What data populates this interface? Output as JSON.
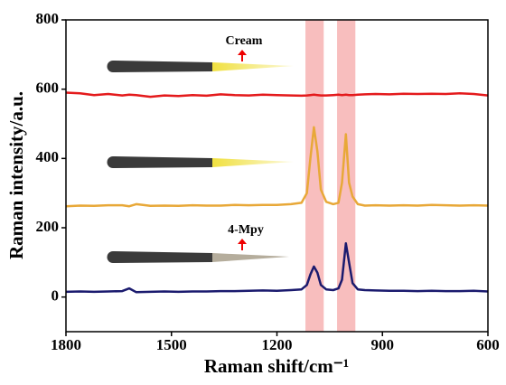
{
  "chart_data": {
    "type": "line",
    "xlabel": "Raman shift/cm⁻¹",
    "ylabel": "Raman intensity/a.u.",
    "annotations": [
      "Cream",
      "4-Mpy"
    ],
    "xlim": [
      1800,
      600
    ],
    "xticks": [
      1800,
      1500,
      1200,
      900,
      600
    ],
    "ylim": [
      -100,
      800
    ],
    "yticks": [
      0,
      200,
      400,
      600,
      800
    ],
    "highlight_color": "#f7b3b3",
    "highlight_ranges": [
      [
        1119,
        1067
      ],
      [
        1029,
        977
      ]
    ],
    "x": [
      1800,
      1760,
      1720,
      1680,
      1640,
      1620,
      1600,
      1560,
      1520,
      1480,
      1440,
      1400,
      1360,
      1320,
      1280,
      1240,
      1200,
      1160,
      1130,
      1115,
      1105,
      1095,
      1085,
      1075,
      1060,
      1040,
      1025,
      1015,
      1004,
      995,
      985,
      970,
      950,
      920,
      880,
      840,
      800,
      760,
      720,
      680,
      640,
      600
    ],
    "series": [
      {
        "color": "#e41a1c",
        "values": [
          590,
          588,
          583,
          586,
          582,
          584,
          583,
          578,
          582,
          580,
          583,
          581,
          585,
          583,
          582,
          584,
          583,
          582,
          581,
          582,
          583,
          584,
          583,
          582,
          582,
          583,
          584,
          583,
          584,
          583,
          583,
          584,
          585,
          586,
          585,
          587,
          586,
          587,
          586,
          588,
          586,
          582
        ]
      },
      {
        "color": "#e8a838",
        "values": [
          262,
          264,
          263,
          265,
          265,
          262,
          268,
          263,
          264,
          263,
          265,
          264,
          264,
          266,
          265,
          266,
          266,
          268,
          272,
          300,
          400,
          490,
          420,
          310,
          275,
          268,
          272,
          330,
          470,
          330,
          290,
          268,
          264,
          265,
          264,
          265,
          264,
          266,
          265,
          264,
          265,
          264
        ]
      },
      {
        "color": "#1a1a6e",
        "values": [
          15,
          16,
          15,
          16,
          17,
          25,
          14,
          15,
          16,
          15,
          16,
          16,
          17,
          17,
          18,
          19,
          18,
          20,
          22,
          35,
          65,
          88,
          70,
          35,
          22,
          20,
          25,
          50,
          155,
          100,
          40,
          22,
          20,
          19,
          18,
          18,
          17,
          18,
          17,
          17,
          18,
          16
        ]
      }
    ]
  }
}
